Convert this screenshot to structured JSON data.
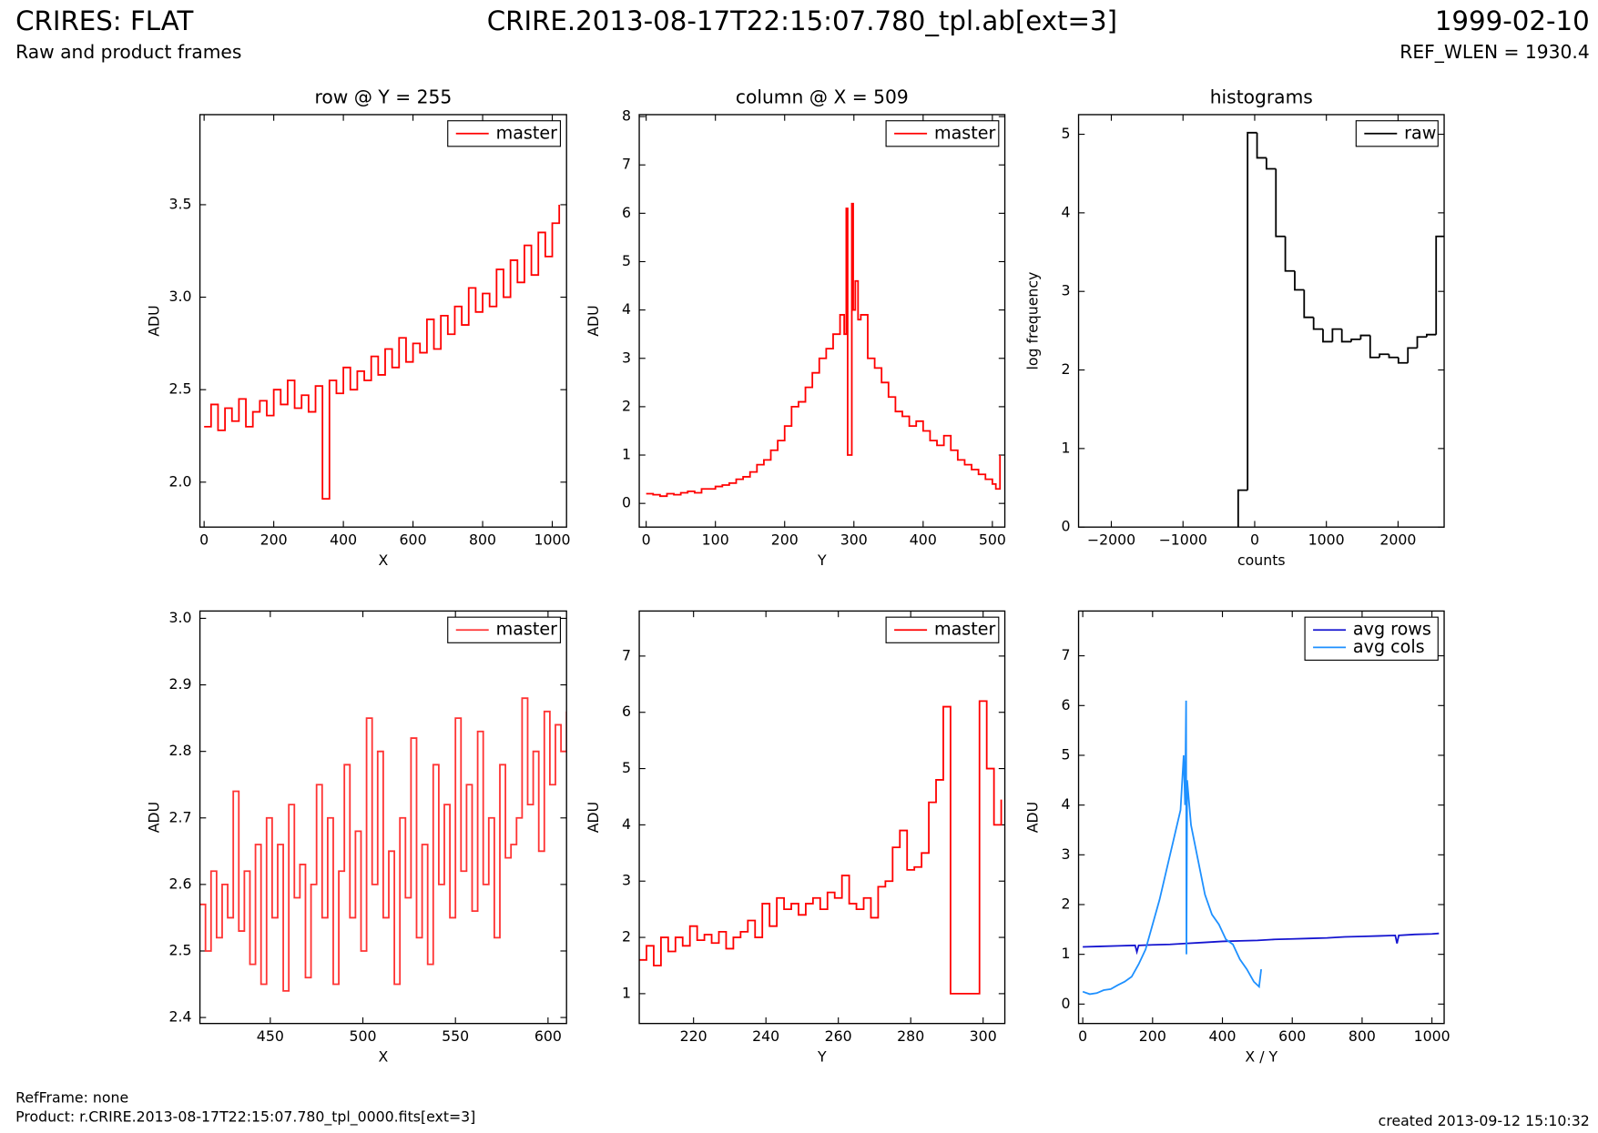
{
  "header": {
    "title": "CRIRES: FLAT",
    "file": "CRIRE.2013-08-17T22:15:07.780_tpl.ab[ext=3]",
    "date": "1999-02-10",
    "subtitle": "Raw and product frames",
    "ref_wlen": "REF_WLEN = 1930.4"
  },
  "footer": {
    "refframe": "RefFrame: none",
    "product": "Product: r.CRIRE.2013-08-17T22:15:07.780_tpl_0000.fits[ext=3]",
    "created": "created 2013-09-12 15:10:32"
  },
  "chart_data": [
    {
      "type": "line",
      "drawstyle": "steps",
      "title": "row @ Y = 255",
      "xlabel": "X",
      "ylabel": "ADU",
      "legend": "upper right",
      "xlim": [
        -12,
        1041
      ],
      "ylim": [
        1.757,
        3.987
      ],
      "xticks": [
        0,
        200,
        400,
        600,
        800,
        1000
      ],
      "yticks": [
        {
          "value": 2,
          "label": "2.0"
        },
        2.5,
        {
          "value": 3,
          "label": "3.0"
        },
        3.5
      ],
      "series": [
        {
          "name": "master",
          "color": "#ff0000",
          "x": [
            0,
            20,
            40,
            60,
            80,
            100,
            120,
            140,
            160,
            180,
            200,
            220,
            240,
            260,
            280,
            300,
            320,
            340,
            360,
            380,
            400,
            420,
            440,
            460,
            480,
            500,
            520,
            540,
            560,
            580,
            600,
            620,
            640,
            660,
            680,
            700,
            720,
            740,
            760,
            780,
            800,
            820,
            840,
            860,
            880,
            900,
            920,
            940,
            960,
            980,
            1000,
            1020
          ],
          "values": [
            2.3,
            2.42,
            2.28,
            2.4,
            2.33,
            2.45,
            2.3,
            2.38,
            2.44,
            2.36,
            2.5,
            2.42,
            2.55,
            2.4,
            2.47,
            2.38,
            2.52,
            1.91,
            2.55,
            2.48,
            2.62,
            2.5,
            2.6,
            2.55,
            2.68,
            2.58,
            2.72,
            2.62,
            2.78,
            2.65,
            2.75,
            2.7,
            2.88,
            2.72,
            2.9,
            2.8,
            2.95,
            2.85,
            3.05,
            2.92,
            3.02,
            2.95,
            3.15,
            3.0,
            3.2,
            3.08,
            3.28,
            3.12,
            3.35,
            3.22,
            3.4,
            3.5
          ]
        }
      ]
    },
    {
      "type": "line",
      "drawstyle": "steps",
      "title": "column @ X = 509",
      "xlabel": "Y",
      "ylabel": "ADU",
      "legend": "upper right",
      "xlim": [
        -10,
        518
      ],
      "ylim": [
        -0.49,
        8.04
      ],
      "xticks": [
        0,
        100,
        200,
        300,
        400,
        500
      ],
      "yticks": [
        0,
        1,
        2,
        3,
        4,
        5,
        6,
        7,
        8
      ],
      "series": [
        {
          "name": "master",
          "color": "#ff0000",
          "x": [
            0,
            10,
            20,
            30,
            40,
            50,
            60,
            70,
            80,
            90,
            100,
            110,
            120,
            130,
            140,
            150,
            160,
            170,
            180,
            190,
            200,
            210,
            220,
            230,
            240,
            250,
            260,
            270,
            280,
            286,
            289,
            291,
            297,
            299,
            302,
            306,
            310,
            320,
            330,
            340,
            350,
            360,
            370,
            380,
            390,
            400,
            410,
            420,
            430,
            440,
            450,
            460,
            470,
            480,
            490,
            500,
            505,
            511
          ],
          "values": [
            0.2,
            0.18,
            0.15,
            0.2,
            0.18,
            0.22,
            0.25,
            0.22,
            0.3,
            0.3,
            0.35,
            0.38,
            0.42,
            0.5,
            0.55,
            0.65,
            0.8,
            0.9,
            1.1,
            1.3,
            1.6,
            2.0,
            2.1,
            2.4,
            2.7,
            3.0,
            3.2,
            3.5,
            3.9,
            3.5,
            6.1,
            1.0,
            6.2,
            4.0,
            4.6,
            3.8,
            3.9,
            3.0,
            2.8,
            2.5,
            2.2,
            1.9,
            1.8,
            1.6,
            1.7,
            1.5,
            1.3,
            1.2,
            1.4,
            1.1,
            0.9,
            0.8,
            0.7,
            0.6,
            0.5,
            0.4,
            0.3,
            1.0
          ]
        }
      ]
    },
    {
      "type": "histogram",
      "title": "histograms",
      "xlabel": "counts",
      "ylabel": "log frequency",
      "legend": "upper right",
      "xlim": [
        -2457,
        2643
      ],
      "ylim": [
        0,
        5.25
      ],
      "xticks": [
        {
          "value": -2000,
          "label": "−2000"
        },
        {
          "value": -1000,
          "label": "−1000"
        },
        0,
        1000,
        2000
      ],
      "yticks": [
        0,
        1,
        2,
        3,
        4,
        5
      ],
      "bins": [
        -230,
        -99,
        33,
        164,
        296,
        427,
        559,
        690,
        822,
        953,
        1085,
        1216,
        1348,
        1479,
        1611,
        1742,
        1874,
        2005,
        2137,
        2268,
        2400,
        2531,
        2643
      ],
      "series": [
        {
          "name": "raw",
          "color": "#000000",
          "values": [
            0.47,
            5.02,
            4.7,
            4.56,
            3.7,
            3.26,
            3.02,
            2.67,
            2.52,
            2.36,
            2.52,
            2.36,
            2.39,
            2.44,
            2.16,
            2.2,
            2.16,
            2.09,
            2.28,
            2.42,
            2.45,
            3.7
          ]
        }
      ]
    },
    {
      "type": "line",
      "drawstyle": "steps",
      "xlabel": "X",
      "ylabel": "ADU",
      "legend": "upper right",
      "xlim": [
        412,
        610
      ],
      "ylim": [
        2.391,
        3.011
      ],
      "xticks": [
        450,
        500,
        550,
        600
      ],
      "yticks": [
        2.4,
        2.5,
        2.6,
        2.7,
        2.8,
        2.9,
        {
          "value": 3,
          "label": "3.0"
        }
      ],
      "series": [
        {
          "name": "master",
          "color": "#ff3333",
          "x": [
            412,
            415,
            418,
            421,
            424,
            427,
            430,
            433,
            436,
            439,
            442,
            445,
            448,
            451,
            454,
            457,
            460,
            463,
            466,
            469,
            472,
            475,
            478,
            481,
            484,
            487,
            490,
            493,
            496,
            499,
            502,
            505,
            508,
            511,
            514,
            517,
            520,
            523,
            526,
            529,
            532,
            535,
            538,
            541,
            544,
            547,
            550,
            553,
            556,
            559,
            562,
            565,
            568,
            571,
            574,
            577,
            580,
            583,
            586,
            589,
            592,
            595,
            598,
            601,
            604,
            607,
            610
          ],
          "values": [
            2.57,
            2.5,
            2.62,
            2.52,
            2.6,
            2.55,
            2.74,
            2.53,
            2.62,
            2.48,
            2.66,
            2.45,
            2.7,
            2.55,
            2.66,
            2.44,
            2.72,
            2.58,
            2.63,
            2.46,
            2.6,
            2.75,
            2.55,
            2.7,
            2.45,
            2.62,
            2.78,
            2.55,
            2.68,
            2.5,
            2.85,
            2.6,
            2.8,
            2.55,
            2.65,
            2.45,
            2.7,
            2.58,
            2.82,
            2.52,
            2.66,
            2.48,
            2.78,
            2.6,
            2.72,
            2.55,
            2.85,
            2.62,
            2.75,
            2.56,
            2.83,
            2.6,
            2.7,
            2.52,
            2.78,
            2.64,
            2.66,
            2.7,
            2.88,
            2.72,
            2.8,
            2.65,
            2.86,
            2.75,
            2.84,
            2.8,
            2.86
          ]
        }
      ]
    },
    {
      "type": "line",
      "drawstyle": "steps",
      "xlabel": "Y",
      "ylabel": "ADU",
      "legend": "upper right",
      "xlim": [
        205,
        306
      ],
      "ylim": [
        0.47,
        7.8
      ],
      "xticks": [
        220,
        240,
        260,
        280,
        300
      ],
      "yticks": [
        1,
        2,
        3,
        4,
        5,
        6,
        7
      ],
      "series": [
        {
          "name": "master",
          "color": "#ff0000",
          "x": [
            205,
            207,
            209,
            211,
            213,
            215,
            217,
            219,
            221,
            223,
            225,
            227,
            229,
            231,
            233,
            235,
            237,
            239,
            241,
            243,
            245,
            247,
            249,
            251,
            253,
            255,
            257,
            259,
            261,
            263,
            265,
            267,
            269,
            271,
            273,
            275,
            277,
            279,
            281,
            283,
            285,
            287,
            289,
            291,
            293,
            295,
            297,
            299,
            301,
            303,
            305
          ],
          "values": [
            1.6,
            1.85,
            1.5,
            2.0,
            1.75,
            2.0,
            1.85,
            2.2,
            1.95,
            2.05,
            1.9,
            2.1,
            1.8,
            2.0,
            2.1,
            2.3,
            2.0,
            2.6,
            2.2,
            2.7,
            2.5,
            2.6,
            2.4,
            2.6,
            2.7,
            2.5,
            2.8,
            2.7,
            3.1,
            2.6,
            2.5,
            2.7,
            2.35,
            2.9,
            3.0,
            3.6,
            3.9,
            3.2,
            3.25,
            3.5,
            4.4,
            4.8,
            6.1,
            1.0,
            1.0,
            1.0,
            1.0,
            6.2,
            5.0,
            4.0,
            4.45
          ]
        }
      ]
    },
    {
      "type": "line",
      "drawstyle": "default",
      "xlabel": "X / Y",
      "ylabel": "ADU",
      "legend": "upper right",
      "xlim": [
        -12,
        1035
      ],
      "ylim": [
        -0.39,
        7.9
      ],
      "xticks": [
        0,
        200,
        400,
        600,
        800,
        1000
      ],
      "yticks": [
        0,
        1,
        2,
        3,
        4,
        5,
        6,
        7
      ],
      "series": [
        {
          "name": "avg rows",
          "color": "#1515d0",
          "x": [
            0,
            50,
            100,
            150,
            155,
            160,
            200,
            250,
            300,
            350,
            400,
            450,
            500,
            550,
            600,
            650,
            700,
            750,
            800,
            850,
            895,
            900,
            905,
            950,
            1000,
            1020
          ],
          "values": [
            1.15,
            1.16,
            1.17,
            1.18,
            1.05,
            1.18,
            1.19,
            1.2,
            1.22,
            1.24,
            1.26,
            1.27,
            1.28,
            1.3,
            1.31,
            1.32,
            1.33,
            1.35,
            1.36,
            1.37,
            1.38,
            1.22,
            1.38,
            1.4,
            1.41,
            1.42
          ]
        },
        {
          "name": "avg cols",
          "color": "#1e90ff",
          "x": [
            0,
            20,
            40,
            60,
            80,
            100,
            120,
            140,
            160,
            180,
            200,
            220,
            240,
            260,
            280,
            289,
            293,
            296,
            297,
            299,
            310,
            330,
            350,
            370,
            390,
            410,
            430,
            450,
            470,
            490,
            505,
            511
          ],
          "values": [
            0.25,
            0.2,
            0.22,
            0.28,
            0.3,
            0.38,
            0.45,
            0.55,
            0.8,
            1.1,
            1.6,
            2.1,
            2.7,
            3.3,
            3.9,
            5.0,
            4.0,
            6.1,
            1.0,
            4.5,
            3.6,
            2.9,
            2.2,
            1.8,
            1.6,
            1.3,
            1.2,
            0.9,
            0.7,
            0.45,
            0.35,
            0.7
          ]
        }
      ]
    }
  ]
}
